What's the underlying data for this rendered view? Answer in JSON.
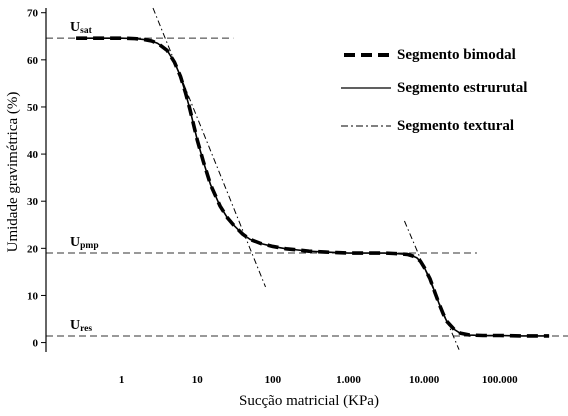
{
  "chart_data": {
    "type": "line",
    "x_scale": "log",
    "xlabel": "Sucção matricial (KPa)",
    "ylabel": "Umidade gravimétrica (%)",
    "xlim": [
      0.1,
      800000
    ],
    "ylim": [
      -2,
      71
    ],
    "x_ticks": [
      {
        "value": 1,
        "label": "1"
      },
      {
        "value": 10,
        "label": "10"
      },
      {
        "value": 100,
        "label": "100"
      },
      {
        "value": 1000,
        "label": "1.000"
      },
      {
        "value": 10000,
        "label": "10.000"
      },
      {
        "value": 100000,
        "label": "100.000"
      }
    ],
    "y_ticks": [
      0,
      10,
      20,
      30,
      40,
      50,
      60,
      70
    ],
    "grid": false,
    "legend_position": "top-right",
    "series": [
      {
        "name": "Segmento estrurutal",
        "style": "solid",
        "x": [
          0.25,
          0.5,
          1,
          1.5,
          2,
          2.5,
          3,
          4,
          5,
          6,
          7,
          8,
          10,
          12,
          15,
          20,
          25,
          30,
          40,
          50,
          70,
          100,
          150,
          200,
          300,
          500,
          700,
          1000,
          1500,
          2000,
          3000,
          4000,
          5000,
          6000,
          7000,
          8000,
          9000,
          10000,
          12000,
          14000,
          16000,
          18000,
          20000,
          25000,
          30000,
          40000,
          60000,
          100000,
          200000,
          350000,
          450000
        ],
        "y": [
          64.6,
          64.6,
          64.6,
          64.5,
          64.3,
          64.0,
          63.5,
          62.0,
          59.5,
          56.5,
          53.0,
          49.5,
          43.0,
          38.5,
          33.5,
          29.0,
          26.5,
          25.0,
          23.0,
          21.9,
          21.0,
          20.4,
          19.9,
          19.7,
          19.4,
          19.2,
          19.1,
          19.0,
          19.0,
          19.0,
          19.0,
          18.9,
          18.8,
          18.7,
          18.4,
          18.0,
          17.2,
          16.0,
          13.5,
          10.5,
          8.0,
          6.0,
          4.5,
          2.8,
          2.0,
          1.6,
          1.5,
          1.5,
          1.4,
          1.4,
          1.4
        ]
      },
      {
        "name": "Segmento bimodal",
        "style": "heavy-dashed",
        "x": [
          0.25,
          0.5,
          1,
          1.5,
          2,
          2.5,
          3,
          4,
          5,
          6,
          7,
          8,
          10,
          12,
          15,
          20,
          25,
          30,
          40,
          50,
          70,
          100,
          150,
          200,
          300,
          500,
          700,
          1000,
          1500,
          2000,
          3000,
          4000,
          5000,
          6000,
          7000,
          8000,
          9000,
          10000,
          12000,
          14000,
          16000,
          18000,
          20000,
          25000,
          30000,
          40000,
          60000,
          100000,
          200000,
          350000,
          450000
        ],
        "y": [
          64.6,
          64.6,
          64.6,
          64.5,
          64.3,
          64.0,
          63.5,
          62.0,
          59.5,
          56.5,
          53.0,
          49.5,
          43.0,
          38.5,
          33.5,
          29.0,
          26.5,
          25.0,
          23.0,
          21.9,
          21.0,
          20.4,
          19.9,
          19.7,
          19.4,
          19.2,
          19.1,
          19.0,
          19.0,
          19.0,
          19.0,
          18.9,
          18.8,
          18.7,
          18.4,
          18.0,
          17.2,
          16.0,
          13.5,
          10.5,
          8.0,
          6.0,
          4.5,
          2.8,
          2.0,
          1.6,
          1.5,
          1.5,
          1.4,
          1.4,
          1.4
        ]
      },
      {
        "name": "Segmento textural",
        "style": "dash-dot",
        "segments": [
          {
            "x": [
              2.6,
              80
            ],
            "y": [
              71,
              11.8
            ]
          },
          {
            "x": [
              5500,
              29000
            ],
            "y": [
              25.8,
              -1.5
            ]
          }
        ]
      }
    ],
    "reference_lines": [
      {
        "label_main": "U",
        "label_sub": "sat",
        "y": 64.6,
        "x_start": 0.1,
        "x_end": 30
      },
      {
        "label_main": "U",
        "label_sub": "pmp",
        "y": 19.0,
        "x_start": 0.1,
        "x_end": 50000
      },
      {
        "label_main": "U",
        "label_sub": "res",
        "y": 1.4,
        "x_start": 0.1,
        "x_end": 800000
      }
    ],
    "legend": [
      {
        "label": "Segmento bimodal",
        "style": "heavy-dashed"
      },
      {
        "label": "Segmento estrurutal",
        "style": "solid"
      },
      {
        "label": "Segmento textural",
        "style": "dash-dot"
      }
    ]
  }
}
